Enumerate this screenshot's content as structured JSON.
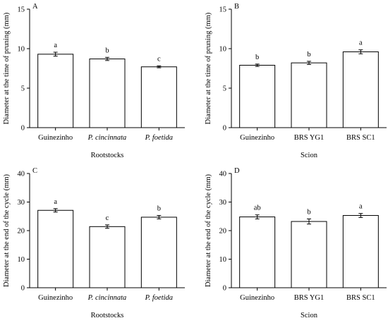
{
  "chart_data": [
    {
      "type": "bar",
      "panel_label": "A",
      "categories": [
        "Guinezinho",
        "P. cincinnata",
        "P. foetida"
      ],
      "italic_categories": [
        false,
        true,
        true
      ],
      "values": [
        9.3,
        8.7,
        7.7
      ],
      "errors": [
        0.25,
        0.2,
        0.12
      ],
      "letters": [
        "a",
        "b",
        "c"
      ],
      "xlabel": "Rootstocks",
      "ylabel": "Diameter at the time of pruning (mm)",
      "ylim": [
        0,
        15
      ],
      "yticks": [
        0,
        5,
        10,
        15
      ],
      "grid": false
    },
    {
      "type": "bar",
      "panel_label": "B",
      "categories": [
        "Guinezinho",
        "BRS YG1",
        "BRS SC1"
      ],
      "italic_categories": [
        false,
        false,
        false
      ],
      "values": [
        7.9,
        8.2,
        9.6
      ],
      "errors": [
        0.15,
        0.2,
        0.25
      ],
      "letters": [
        "b",
        "b",
        "a"
      ],
      "xlabel": "Scion",
      "ylabel": "Diameter at the time of pruning (mm)",
      "ylim": [
        0,
        15
      ],
      "yticks": [
        0,
        5,
        10,
        15
      ],
      "grid": false
    },
    {
      "type": "bar",
      "panel_label": "C",
      "categories": [
        "Guinezinho",
        "P. cincinnata",
        "P. foetida"
      ],
      "italic_categories": [
        false,
        true,
        true
      ],
      "values": [
        27.1,
        21.4,
        24.7
      ],
      "errors": [
        0.6,
        0.6,
        0.6
      ],
      "letters": [
        "a",
        "c",
        "b"
      ],
      "xlabel": "Rootstocks",
      "ylabel": "Diameter at the end of the cycle (mm)",
      "ylim": [
        0,
        40
      ],
      "yticks": [
        0,
        10,
        20,
        30,
        40
      ],
      "grid": false
    },
    {
      "type": "bar",
      "panel_label": "D",
      "categories": [
        "Guinezinho",
        "BRS YG1",
        "BRS SC1"
      ],
      "italic_categories": [
        false,
        false,
        false
      ],
      "values": [
        24.8,
        23.2,
        25.3
      ],
      "errors": [
        0.7,
        0.9,
        0.7
      ],
      "letters": [
        "ab",
        "b",
        "a"
      ],
      "xlabel": "Scion",
      "ylabel": "Diameter at the end of the cycle (mm)",
      "ylim": [
        0,
        40
      ],
      "yticks": [
        0,
        10,
        20,
        30,
        40
      ],
      "grid": false
    }
  ]
}
